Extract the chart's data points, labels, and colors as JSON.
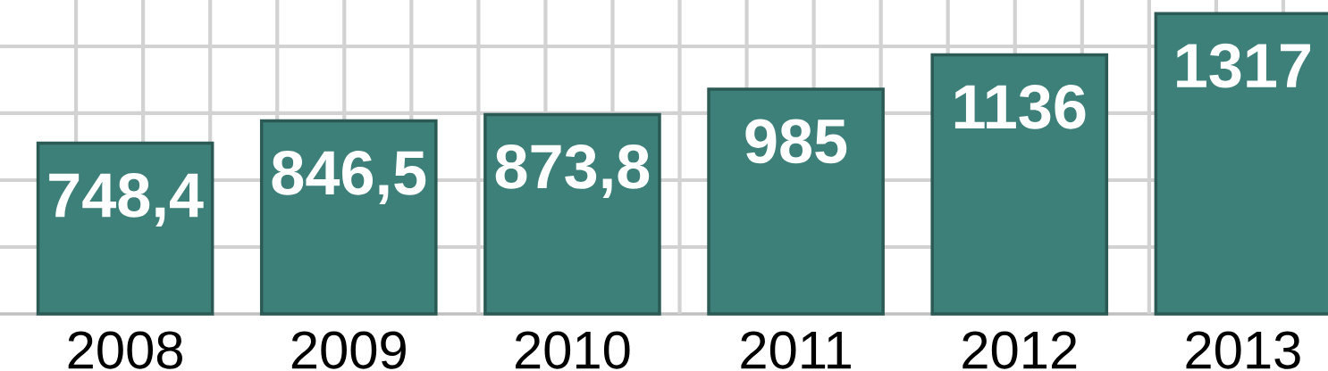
{
  "chart_data": {
    "type": "bar",
    "categories": [
      "2008",
      "2009",
      "2010",
      "2011",
      "2012",
      "2013"
    ],
    "values": [
      748.4,
      846.5,
      873.8,
      985,
      1136,
      1317
    ],
    "value_labels": [
      "748,4",
      "846,5",
      "873,8",
      "985",
      "1136",
      "1317"
    ],
    "color": "#3d8079",
    "grid": true
  }
}
